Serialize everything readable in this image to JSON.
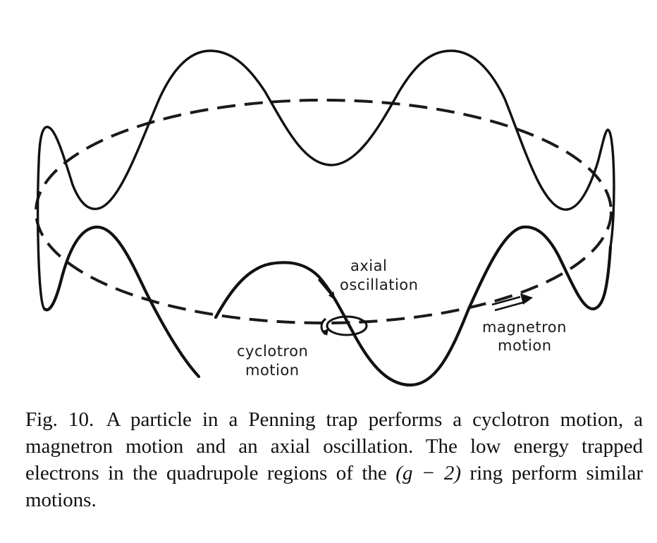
{
  "figure": {
    "labels": {
      "axial": "axial",
      "oscillation": "oscillation",
      "magnetron": "magnetron",
      "magnetron_motion": "motion",
      "cyclotron": "cyclotron",
      "cyclotron_motion": "motion"
    }
  },
  "caption": {
    "fig_number": "Fig. 10.",
    "text_before_math": "A particle in a Penning trap performs a cyclotron motion, a magnetron motion and an axial oscillation. The low energy trapped electrons in the quadrupole regions of the ",
    "math": "(g − 2)",
    "text_after_math": " ring perform similar motions."
  }
}
